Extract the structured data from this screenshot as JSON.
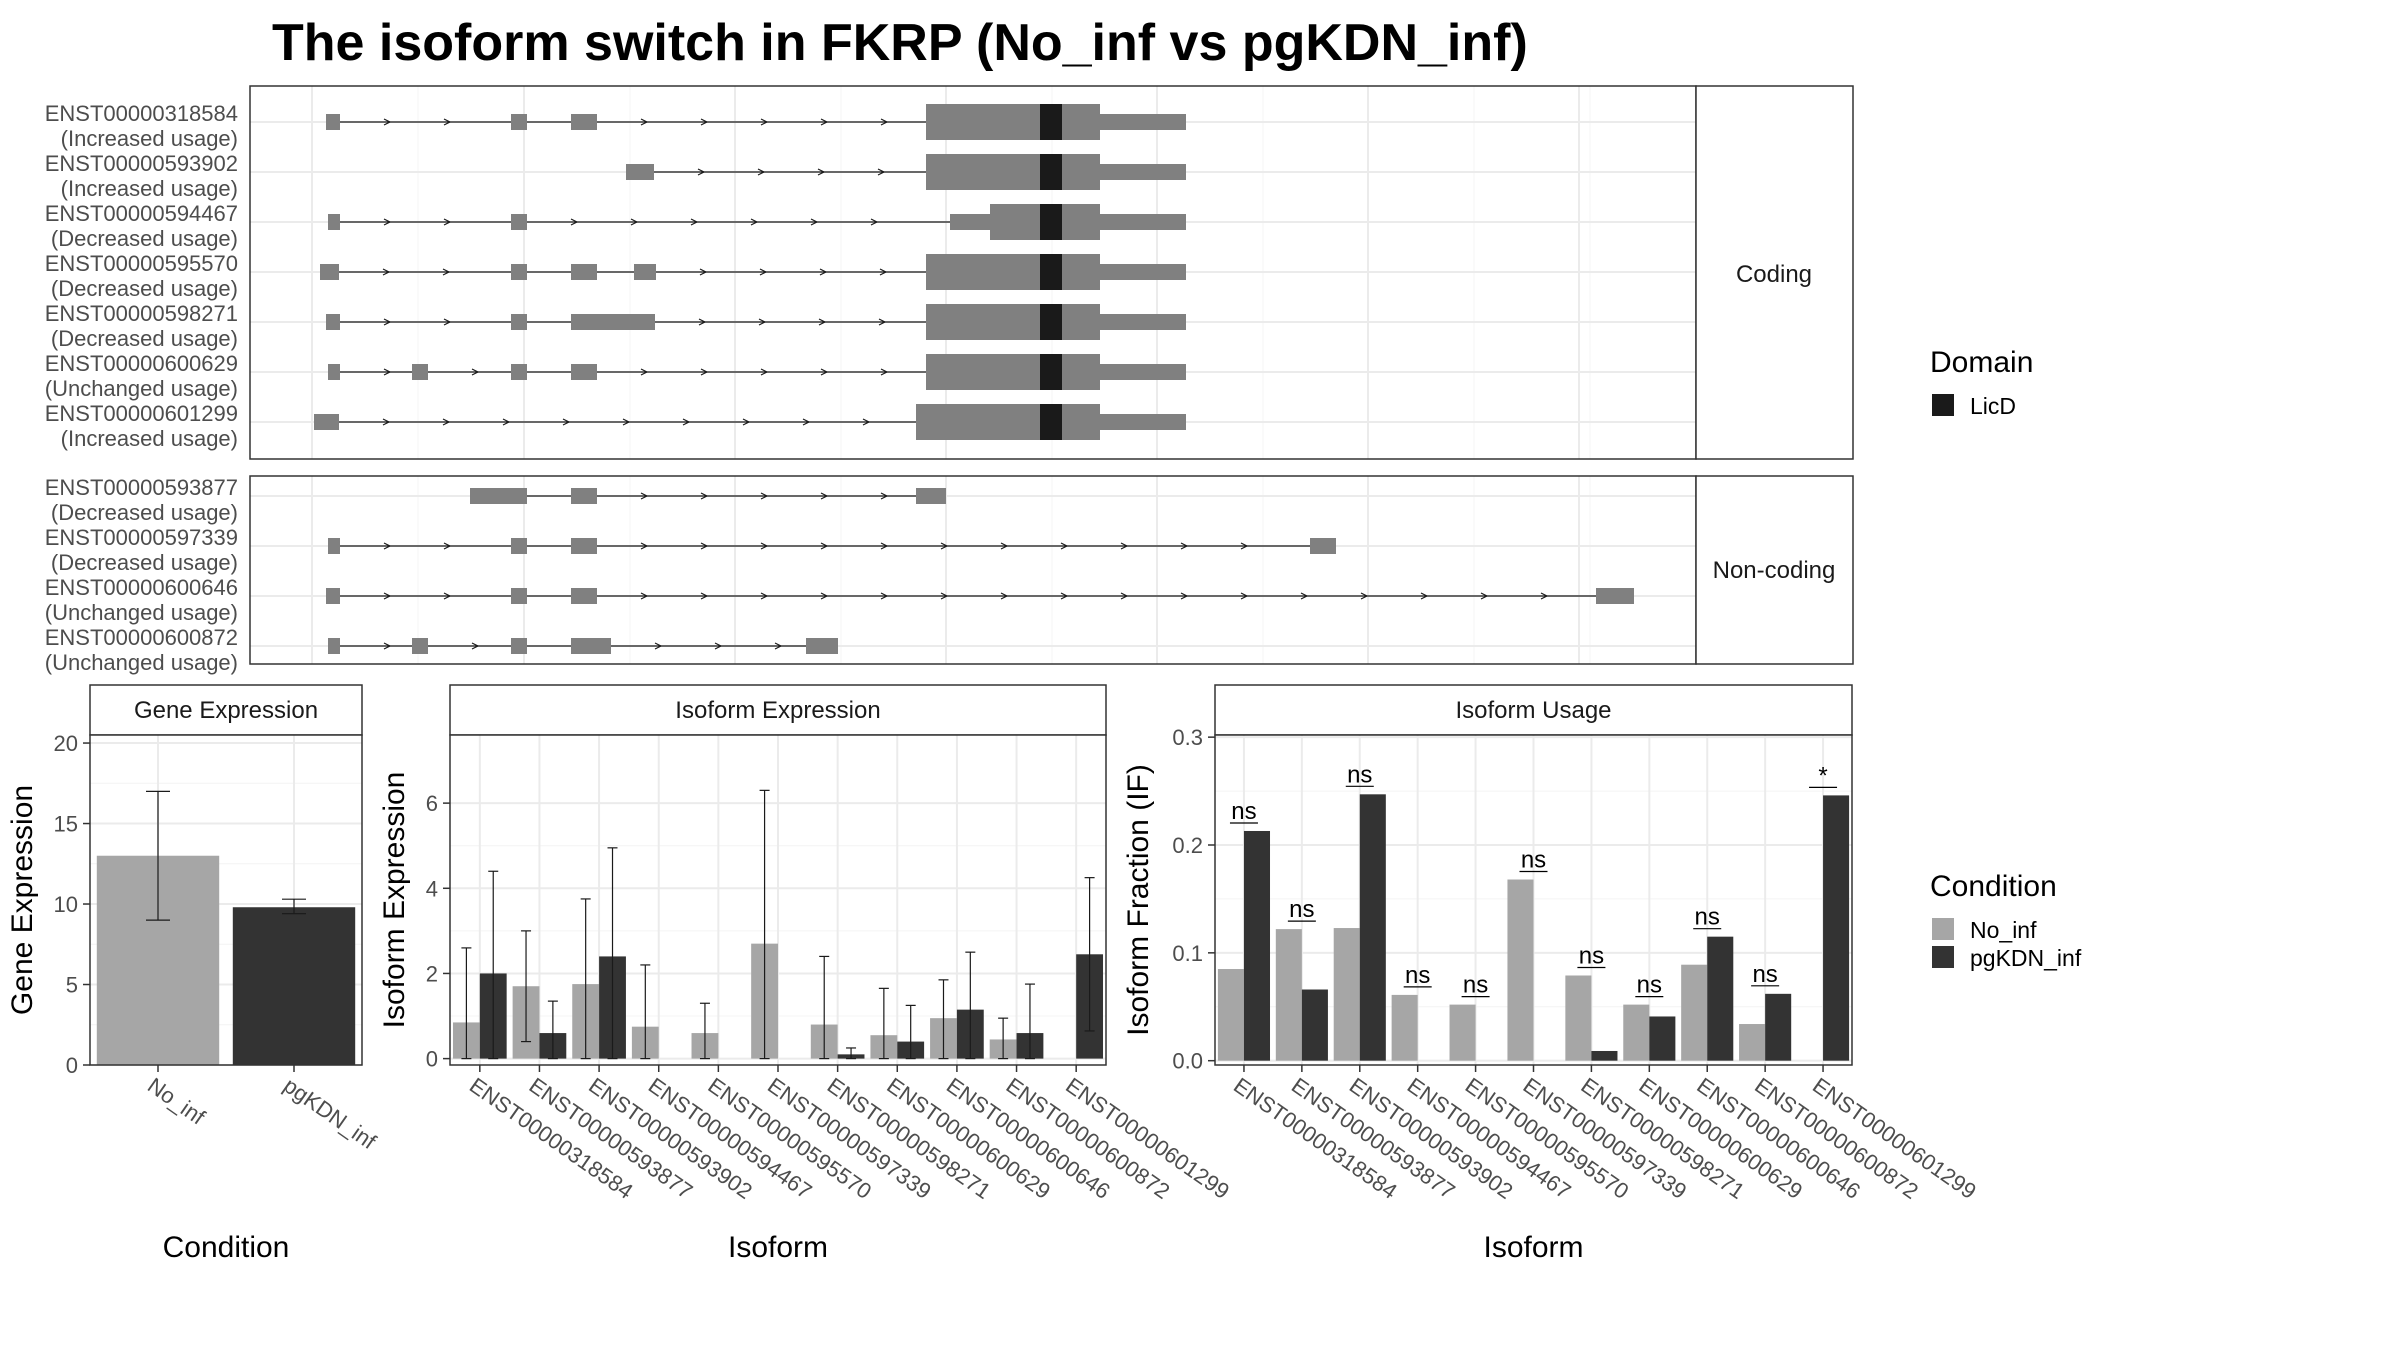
{
  "title": "The isoform switch in FKRP (No_inf vs pgKDN_inf)",
  "colors": {
    "exon": "#808080",
    "domain": "#1a1a1a",
    "intron": "#1a1a1a",
    "no_inf": "#a6a6a6",
    "pgkdn_inf": "#333333"
  },
  "structure_panels": {
    "coding_label": "Coding",
    "noncoding_label": "Non-coding",
    "coding": [
      {
        "id": "ENST00000318584",
        "usage": "(Increased usage)"
      },
      {
        "id": "ENST00000593902",
        "usage": "(Increased usage)"
      },
      {
        "id": "ENST00000594467",
        "usage": "(Decreased usage)"
      },
      {
        "id": "ENST00000595570",
        "usage": "(Decreased usage)"
      },
      {
        "id": "ENST00000598271",
        "usage": "(Decreased usage)"
      },
      {
        "id": "ENST00000600629",
        "usage": "(Unchanged usage)"
      },
      {
        "id": "ENST00000601299",
        "usage": "(Increased usage)"
      }
    ],
    "noncoding": [
      {
        "id": "ENST00000593877",
        "usage": "(Decreased usage)"
      },
      {
        "id": "ENST00000597339",
        "usage": "(Decreased usage)"
      },
      {
        "id": "ENST00000600646",
        "usage": "(Unchanged usage)"
      },
      {
        "id": "ENST00000600872",
        "usage": "(Unchanged usage)"
      }
    ]
  },
  "legend_domain": {
    "title": "Domain",
    "items": [
      {
        "label": "LicD",
        "color": "#1a1a1a"
      }
    ]
  },
  "legend_condition": {
    "title": "Condition",
    "items": [
      {
        "label": "No_inf",
        "color": "#a6a6a6"
      },
      {
        "label": "pgKDN_inf",
        "color": "#333333"
      }
    ]
  },
  "chart_data": [
    {
      "type": "bar",
      "title": "Gene Expression",
      "xlabel": "Condition",
      "ylabel": "Gene Expression",
      "categories": [
        "No_inf",
        "pgKDN_inf"
      ],
      "values": [
        13.0,
        9.8
      ],
      "error_low": [
        9.0,
        9.4
      ],
      "error_high": [
        17.0,
        10.3
      ],
      "ylim": [
        0,
        20.5
      ],
      "yticks": [
        0,
        5,
        10,
        15,
        20
      ],
      "grid": true
    },
    {
      "type": "bar",
      "title": "Isoform Expression",
      "xlabel": "Isoform",
      "ylabel": "Isoform Expression",
      "categories": [
        "ENST00000318584",
        "ENST00000593877",
        "ENST00000593902",
        "ENST00000594467",
        "ENST00000595570",
        "ENST00000597339",
        "ENST00000598271",
        "ENST00000600629",
        "ENST00000600646",
        "ENST00000600872",
        "ENST00000601299"
      ],
      "series": [
        {
          "name": "No_inf",
          "values": [
            0.85,
            1.7,
            1.75,
            0.75,
            0.6,
            2.7,
            0.8,
            0.55,
            0.95,
            0.45,
            0.0
          ],
          "error_low": [
            0.0,
            0.4,
            0.0,
            0.0,
            0.0,
            0.0,
            0.0,
            0.0,
            0.0,
            0.0,
            0.0
          ],
          "error_high": [
            2.6,
            3.0,
            3.75,
            2.2,
            1.3,
            6.3,
            2.4,
            1.65,
            1.85,
            0.95,
            0.0
          ]
        },
        {
          "name": "pgKDN_inf",
          "values": [
            2.0,
            0.6,
            2.4,
            0.0,
            0.0,
            0.0,
            0.1,
            0.4,
            1.15,
            0.6,
            2.45
          ],
          "error_low": [
            0.0,
            0.0,
            0.0,
            0.0,
            0.0,
            0.0,
            0.0,
            0.0,
            0.0,
            0.0,
            0.65
          ],
          "error_high": [
            4.4,
            1.35,
            4.95,
            0.0,
            0.0,
            0.0,
            0.25,
            1.25,
            2.5,
            1.75,
            4.25
          ]
        }
      ],
      "ylim": [
        -0.15,
        7.6
      ],
      "yticks": [
        0,
        2,
        4,
        6
      ],
      "grid": true
    },
    {
      "type": "bar",
      "title": "Isoform Usage",
      "xlabel": "Isoform",
      "ylabel": "Isoform Fraction (IF)",
      "categories": [
        "ENST00000318584",
        "ENST00000593877",
        "ENST00000593902",
        "ENST00000594467",
        "ENST00000595570",
        "ENST00000597339",
        "ENST00000598271",
        "ENST00000600629",
        "ENST00000600646",
        "ENST00000600872",
        "ENST00000601299"
      ],
      "series": [
        {
          "name": "No_inf",
          "values": [
            0.085,
            0.122,
            0.123,
            0.061,
            0.052,
            0.168,
            0.079,
            0.052,
            0.089,
            0.034,
            0.0
          ]
        },
        {
          "name": "pgKDN_inf",
          "values": [
            0.213,
            0.066,
            0.247,
            0.0,
            0.0,
            0.0,
            0.009,
            0.041,
            0.115,
            0.062,
            0.246
          ]
        }
      ],
      "significance": [
        "ns",
        "ns",
        "ns",
        "ns",
        "ns",
        "ns",
        "ns",
        "ns",
        "ns",
        "ns",
        "*"
      ],
      "ylim": [
        -0.004,
        0.302
      ],
      "yticks": [
        0.0,
        0.1,
        0.2,
        0.3
      ],
      "ytick_labels": [
        "0.0",
        "0.1",
        "0.2",
        "0.3"
      ],
      "grid": true
    }
  ]
}
